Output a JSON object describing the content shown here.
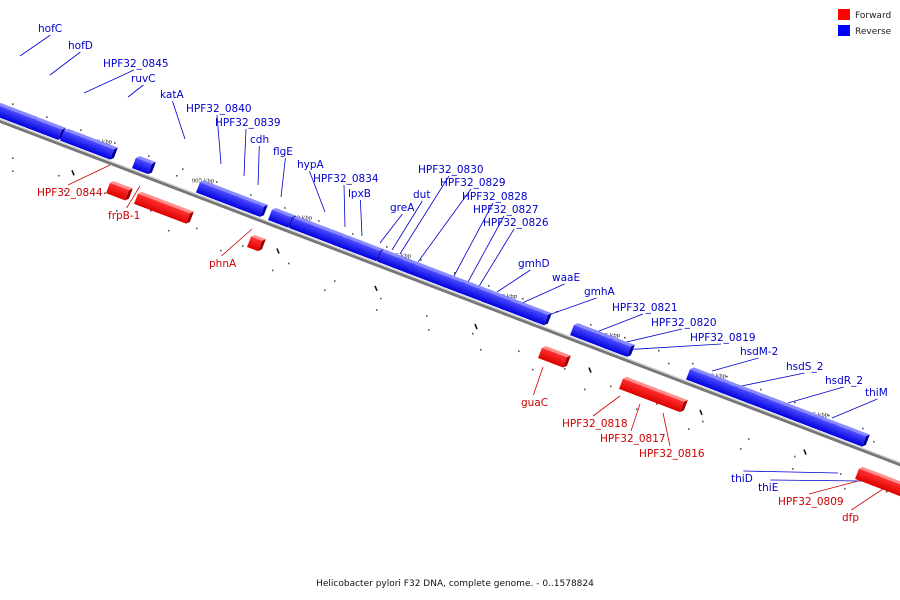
{
  "caption": "Helicobacter pylori F32 DNA, complete genome. - 0..1578824",
  "legend": [
    {
      "label": "Forward",
      "color": "#ff0000"
    },
    {
      "label": "Reverse",
      "color": "#0000ff"
    }
  ],
  "colors": {
    "forward": "#ff0000",
    "reverse": "#0000ff",
    "forward_label": "#cc0000",
    "reverse_label": "#0000cc"
  },
  "scale_ticks": [
    "910 kbp",
    "905 kbp",
    "900 kbp",
    "895 kbp",
    "890 kbp",
    "885 kbp",
    "880 kbp",
    "875 kbp"
  ],
  "genes": [
    {
      "name": "hofC",
      "strand": "reverse"
    },
    {
      "name": "hofD",
      "strand": "reverse"
    },
    {
      "name": "HPF32_0845",
      "strand": "reverse"
    },
    {
      "name": "ruvC",
      "strand": "reverse"
    },
    {
      "name": "katA",
      "strand": "reverse"
    },
    {
      "name": "HPF32_0840",
      "strand": "reverse"
    },
    {
      "name": "HPF32_0839",
      "strand": "reverse"
    },
    {
      "name": "cdh",
      "strand": "reverse"
    },
    {
      "name": "flgE",
      "strand": "reverse"
    },
    {
      "name": "hypA",
      "strand": "reverse"
    },
    {
      "name": "HPF32_0834",
      "strand": "reverse"
    },
    {
      "name": "lpxB",
      "strand": "reverse"
    },
    {
      "name": "greA",
      "strand": "reverse"
    },
    {
      "name": "dut",
      "strand": "reverse"
    },
    {
      "name": "HPF32_0830",
      "strand": "reverse"
    },
    {
      "name": "HPF32_0829",
      "strand": "reverse"
    },
    {
      "name": "HPF32_0828",
      "strand": "reverse"
    },
    {
      "name": "HPF32_0827",
      "strand": "reverse"
    },
    {
      "name": "HPF32_0826",
      "strand": "reverse"
    },
    {
      "name": "gmhD",
      "strand": "reverse"
    },
    {
      "name": "waaE",
      "strand": "reverse"
    },
    {
      "name": "gmhA",
      "strand": "reverse"
    },
    {
      "name": "HPF32_0821",
      "strand": "reverse"
    },
    {
      "name": "HPF32_0820",
      "strand": "reverse"
    },
    {
      "name": "HPF32_0819",
      "strand": "reverse"
    },
    {
      "name": "hsdM-2",
      "strand": "reverse"
    },
    {
      "name": "hsdS_2",
      "strand": "reverse"
    },
    {
      "name": "hsdR_2",
      "strand": "reverse"
    },
    {
      "name": "thiM",
      "strand": "reverse"
    },
    {
      "name": "HPF32_0844",
      "strand": "forward"
    },
    {
      "name": "frpB-1",
      "strand": "forward"
    },
    {
      "name": "phnA",
      "strand": "forward"
    },
    {
      "name": "guaC",
      "strand": "forward"
    },
    {
      "name": "HPF32_0818",
      "strand": "forward"
    },
    {
      "name": "HPF32_0817",
      "strand": "forward"
    },
    {
      "name": "HPF32_0816",
      "strand": "forward"
    },
    {
      "name": "thiD",
      "strand": "reverse"
    },
    {
      "name": "thiE",
      "strand": "reverse"
    },
    {
      "name": "HPF32_0809",
      "strand": "forward"
    },
    {
      "name": "dfp",
      "strand": "forward"
    }
  ]
}
